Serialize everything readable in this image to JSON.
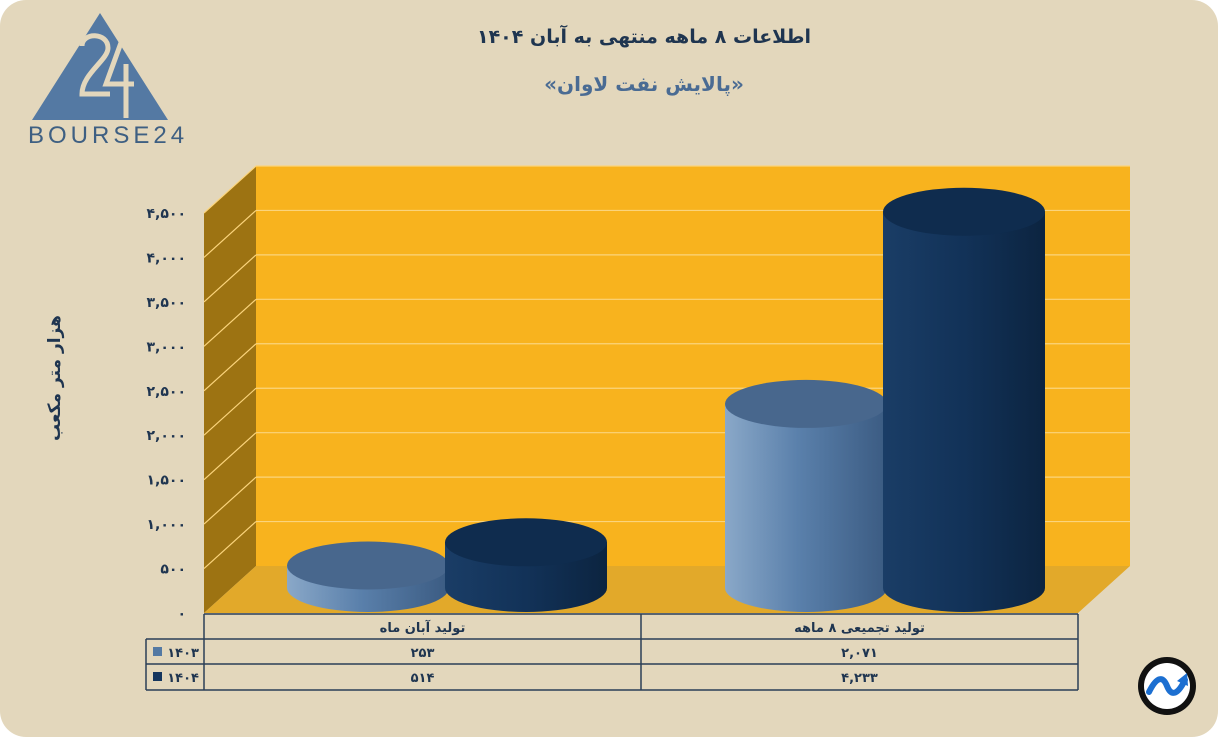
{
  "logo_text": "BOURSE24",
  "chart_data": {
    "type": "bar",
    "title": "اطلاعات ۸ ماهه منتهی به آبان ۱۴۰۴",
    "subtitle": "«پالایش نفت لاوان»",
    "ylabel": "هزار متر مکعب",
    "ylim": [
      0,
      4500
    ],
    "yticks": [
      "۰",
      "۵۰۰",
      "۱,۰۰۰",
      "۱,۵۰۰",
      "۲,۰۰۰",
      "۲,۵۰۰",
      "۳,۰۰۰",
      "۳,۵۰۰",
      "۴,۰۰۰",
      "۴,۵۰۰"
    ],
    "categories": [
      "تولید آبان ماه",
      "تولید تجمیعی ۸ ماهه"
    ],
    "series": [
      {
        "name": "۱۴۰۳",
        "values": [
          253,
          2071
        ],
        "display": [
          "۲۵۳",
          "۲,۰۷۱"
        ],
        "color": "#5479a3"
      },
      {
        "name": "۱۴۰۴",
        "values": [
          514,
          4233
        ],
        "display": [
          "۵۱۴",
          "۴,۲۳۳"
        ],
        "color": "#15365e"
      }
    ],
    "grid": true,
    "colors": {
      "wall": "#f8b31e",
      "side": "#9d7312",
      "floor": "#e2a92a",
      "grid": "#fbd47c"
    }
  }
}
